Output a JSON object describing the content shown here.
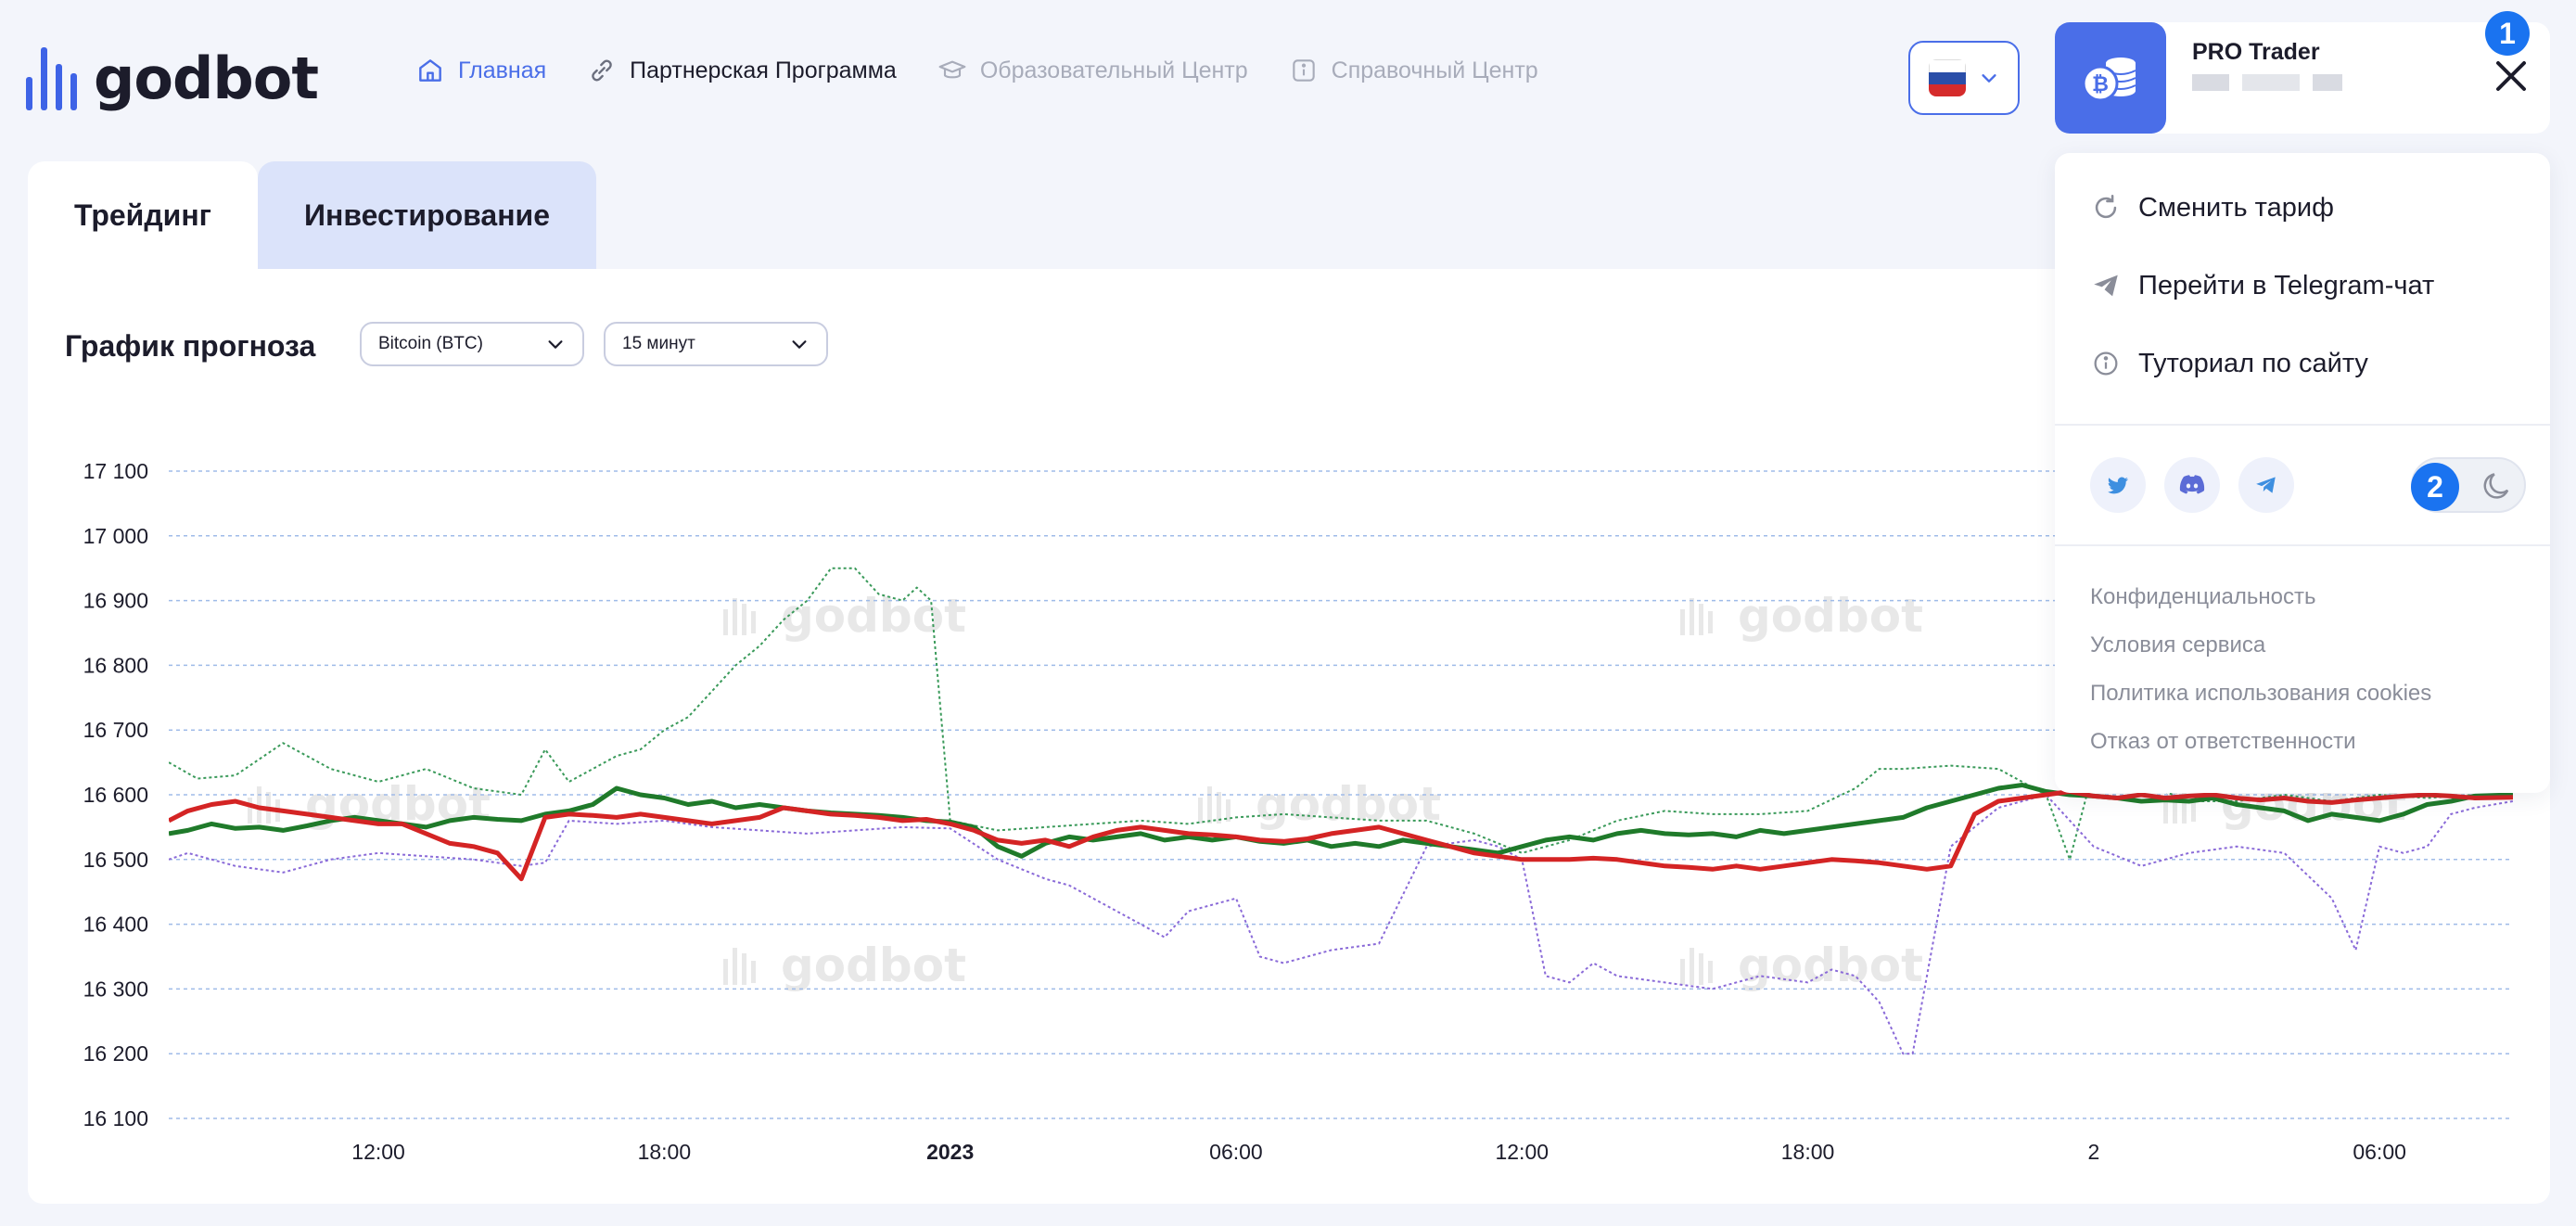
{
  "header": {
    "logo_text": "godbot",
    "nav": [
      {
        "label": "Главная",
        "icon": "home-icon",
        "state": "active"
      },
      {
        "label": "Партнерская Программа",
        "icon": "link-icon",
        "state": "normal"
      },
      {
        "label": "Образовательный Центр",
        "icon": "graduation-cap-icon",
        "state": "muted"
      },
      {
        "label": "Справочный Центр",
        "icon": "info-icon",
        "state": "muted"
      }
    ],
    "language": {
      "flag": "ru",
      "icon": "chevron-down-icon"
    }
  },
  "user": {
    "plan": "PRO Trader",
    "avatar_icon": "bitcoin-coins-icon",
    "badge_1": "1",
    "close_icon": "close-icon"
  },
  "menu": {
    "items": [
      {
        "label": "Сменить тариф",
        "icon": "refresh-icon"
      },
      {
        "label": "Перейти в Telegram-чат",
        "icon": "send-icon"
      },
      {
        "label": "Туториал по сайту",
        "icon": "info-icon"
      }
    ],
    "social": [
      "twitter-icon",
      "discord-icon",
      "telegram-icon"
    ],
    "badge_2": "2",
    "theme_icon": "moon-icon",
    "links": [
      "Конфиденциальность",
      "Условия сервиса",
      "Политика использования cookies",
      "Отказ от ответственности"
    ]
  },
  "tabs": [
    {
      "label": "Трейдинг",
      "state": "active"
    },
    {
      "label": "Инвестирование",
      "state": "inactive"
    }
  ],
  "forecast": {
    "title": "График прогноза",
    "asset_select": "Bitcoin (BTC)",
    "interval_select": "15 минут"
  },
  "colors": {
    "accent": "#4a6ee8",
    "badge": "#1a73f0",
    "green_series": "#1f7a2a",
    "red_series": "#d42424",
    "green_dotted": "#3a9a5a",
    "purple_dotted": "#8a6ad8"
  },
  "chart_data": {
    "type": "line",
    "ylim": [
      16100,
      17100
    ],
    "y_ticks": [
      "17 100",
      "17 000",
      "16 900",
      "16 800",
      "16 700",
      "16 600",
      "16 500",
      "16 400",
      "16 300",
      "16 200",
      "16 100"
    ],
    "x_ticks": [
      "12:00",
      "18:00",
      "2023",
      "06:00",
      "12:00",
      "18:00",
      "2",
      "06:00"
    ],
    "x_tick_hours": [
      12,
      18,
      24,
      30,
      36,
      42,
      48,
      54
    ],
    "xlim_hours": [
      7.6,
      56.8
    ],
    "grid": true,
    "watermark": "godbot",
    "series": [
      {
        "style": "solid-green",
        "x_hours": [
          7.6,
          8,
          8.5,
          9,
          9.5,
          10,
          10.5,
          11,
          11.5,
          12,
          12.5,
          13,
          13.5,
          14,
          14.5,
          15,
          15.5,
          16,
          16.5,
          17,
          17.5,
          18,
          18.5,
          19,
          19.5,
          20,
          20.5,
          21,
          21.5,
          22,
          22.5,
          23,
          23.5,
          24,
          24.5,
          25,
          25.5,
          26,
          26.5,
          27,
          27.5,
          28,
          28.5,
          29,
          29.5,
          30,
          30.5,
          31,
          31.5,
          32,
          32.5,
          33,
          33.5,
          34,
          34.5,
          35,
          35.5,
          36,
          36.5,
          37,
          37.5,
          38,
          38.5,
          39,
          39.5,
          40,
          40.5,
          41,
          41.5,
          42,
          42.5,
          43,
          43.5,
          44,
          44.5,
          45,
          45.5,
          46,
          46.5,
          47,
          47.5,
          48,
          48.5,
          49,
          49.5,
          50,
          50.5,
          51,
          51.5,
          52,
          52.5,
          53,
          53.5,
          54,
          54.5,
          55,
          55.5,
          56,
          56.8
        ],
        "values": [
          16540,
          16545,
          16555,
          16548,
          16550,
          16545,
          16552,
          16560,
          16565,
          16560,
          16555,
          16550,
          16560,
          16565,
          16562,
          16560,
          16570,
          16575,
          16585,
          16610,
          16600,
          16595,
          16585,
          16590,
          16580,
          16585,
          16580,
          16575,
          16572,
          16570,
          16568,
          16565,
          16560,
          16558,
          16550,
          16520,
          16505,
          16525,
          16535,
          16530,
          16535,
          16540,
          16530,
          16535,
          16530,
          16535,
          16528,
          16525,
          16530,
          16520,
          16525,
          16520,
          16530,
          16525,
          16520,
          16515,
          16510,
          16520,
          16530,
          16535,
          16530,
          16540,
          16545,
          16540,
          16538,
          16540,
          16535,
          16545,
          16540,
          16545,
          16550,
          16555,
          16560,
          16565,
          16580,
          16590,
          16600,
          16610,
          16615,
          16605,
          16600,
          16598,
          16595,
          16590,
          16592,
          16590,
          16595,
          16585,
          16580,
          16575,
          16560,
          16570,
          16565,
          16560,
          16570,
          16585,
          16590,
          16598,
          16600
        ]
      },
      {
        "style": "solid-red",
        "x_hours": [
          7.6,
          8,
          8.5,
          9,
          9.5,
          10,
          10.5,
          11,
          11.5,
          12,
          12.5,
          13,
          13.5,
          14,
          14.5,
          15,
          15.5,
          16,
          16.5,
          17,
          17.5,
          18,
          18.5,
          19,
          19.5,
          20,
          20.5,
          21,
          21.5,
          22,
          22.5,
          23,
          23.5,
          24,
          24.5,
          25,
          25.5,
          26,
          26.5,
          27,
          27.5,
          28,
          28.5,
          29,
          29.5,
          30,
          30.5,
          31,
          31.5,
          32,
          32.5,
          33,
          33.5,
          34,
          34.5,
          35,
          35.5,
          36,
          36.5,
          37,
          37.5,
          38,
          38.5,
          39,
          39.5,
          40,
          40.5,
          41,
          41.5,
          42,
          42.5,
          43,
          43.5,
          44,
          44.5,
          45,
          45.5,
          46,
          46.5,
          47,
          47.5,
          48,
          48.5,
          49,
          49.5,
          50,
          50.5,
          51,
          51.5,
          52,
          52.5,
          53,
          53.5,
          54,
          54.5,
          55,
          55.5,
          56,
          56.8
        ],
        "values": [
          16560,
          16575,
          16585,
          16590,
          16580,
          16575,
          16570,
          16565,
          16560,
          16555,
          16555,
          16540,
          16525,
          16520,
          16510,
          16470,
          16565,
          16570,
          16568,
          16565,
          16570,
          16565,
          16560,
          16555,
          16560,
          16565,
          16580,
          16575,
          16570,
          16568,
          16565,
          16560,
          16562,
          16555,
          16545,
          16530,
          16525,
          16530,
          16520,
          16535,
          16545,
          16550,
          16545,
          16540,
          16538,
          16535,
          16530,
          16528,
          16532,
          16540,
          16545,
          16550,
          16540,
          16530,
          16520,
          16510,
          16505,
          16500,
          16500,
          16500,
          16502,
          16500,
          16495,
          16490,
          16488,
          16485,
          16490,
          16485,
          16490,
          16495,
          16500,
          16498,
          16495,
          16490,
          16485,
          16490,
          16570,
          16590,
          16595,
          16600,
          16605,
          16598,
          16595,
          16600,
          16595,
          16598,
          16600,
          16595,
          16592,
          16595,
          16590,
          16588,
          16592,
          16595,
          16598,
          16600,
          16598,
          16595,
          16596
        ]
      },
      {
        "style": "dotted-green",
        "x_hours": [
          7.6,
          8.2,
          9,
          10,
          11,
          11.5,
          12,
          13,
          14,
          15,
          15.5,
          16,
          16.5,
          17,
          17.5,
          18,
          18.5,
          19,
          19.5,
          20,
          20.5,
          21,
          21.5,
          22,
          22.5,
          23,
          23.3,
          23.6,
          24,
          25,
          26,
          27,
          28,
          29,
          30,
          31,
          32,
          33,
          34,
          35,
          36,
          37,
          38,
          39,
          40,
          41,
          42,
          43,
          43.5,
          44,
          45,
          46,
          47,
          47.5,
          48,
          49,
          50,
          51,
          52,
          53,
          54,
          55,
          56,
          56.8
        ],
        "values": [
          16650,
          16625,
          16630,
          16680,
          16640,
          16630,
          16620,
          16640,
          16610,
          16600,
          16670,
          16620,
          16640,
          16660,
          16670,
          16700,
          16720,
          16760,
          16800,
          16830,
          16870,
          16900,
          16950,
          16950,
          16910,
          16900,
          16920,
          16900,
          16560,
          16545,
          16550,
          16555,
          16560,
          16555,
          16565,
          16570,
          16565,
          16560,
          16560,
          16540,
          16510,
          16530,
          16560,
          16575,
          16570,
          16570,
          16575,
          16610,
          16640,
          16640,
          16645,
          16640,
          16600,
          16500,
          16640,
          16620,
          16590,
          16590,
          16600,
          16590,
          16600,
          16595,
          16600,
          16600
        ]
      },
      {
        "style": "dotted-purple",
        "x_hours": [
          7.6,
          8,
          9,
          10,
          11,
          12,
          13,
          14,
          15,
          15.5,
          16,
          17,
          18,
          19,
          20,
          21,
          22,
          23,
          24,
          25,
          26,
          26.5,
          27,
          28,
          28.5,
          29,
          30,
          30.5,
          31,
          31.5,
          32,
          33,
          34,
          35,
          35.5,
          36,
          36.5,
          37,
          37.5,
          38,
          39,
          40,
          41,
          42,
          42.5,
          43,
          43.5,
          44,
          44.2,
          45,
          46,
          47,
          48,
          49,
          50,
          51,
          52,
          53,
          53.5,
          54,
          54.5,
          55,
          55.5,
          56,
          56.8
        ],
        "values": [
          16500,
          16510,
          16490,
          16480,
          16500,
          16510,
          16505,
          16500,
          16490,
          16495,
          16560,
          16555,
          16560,
          16550,
          16545,
          16540,
          16545,
          16550,
          16548,
          16500,
          16470,
          16460,
          16440,
          16400,
          16380,
          16420,
          16440,
          16350,
          16340,
          16350,
          16360,
          16370,
          16520,
          16530,
          16520,
          16500,
          16320,
          16310,
          16340,
          16320,
          16310,
          16300,
          16320,
          16310,
          16330,
          16320,
          16280,
          16200,
          16200,
          16520,
          16580,
          16600,
          16520,
          16490,
          16510,
          16520,
          16510,
          16440,
          16360,
          16520,
          16510,
          16520,
          16570,
          16580,
          16590
        ]
      }
    ]
  }
}
